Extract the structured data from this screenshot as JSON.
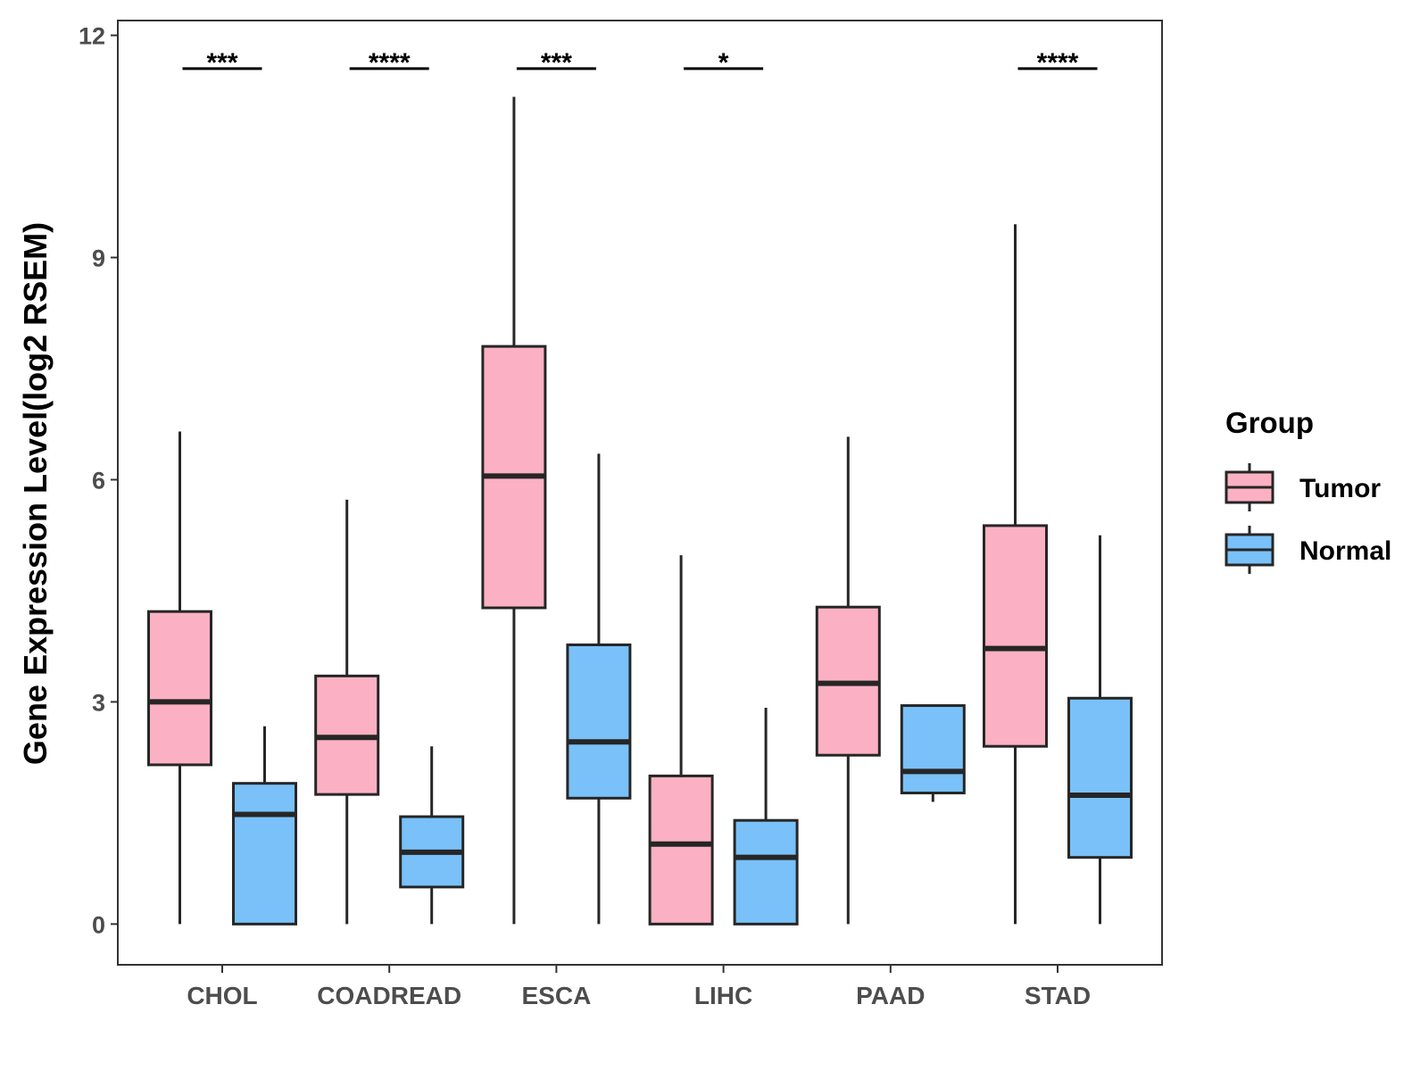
{
  "chart_data": {
    "type": "boxplot",
    "title": "",
    "xlabel": "",
    "ylabel": "Gene Expression Level(log2 RSEM)",
    "ylim": [
      -0.55,
      12.2
    ],
    "yticks": [
      0,
      3,
      6,
      9,
      12
    ],
    "ytick_labels": [
      "0",
      "3",
      "6",
      "9",
      "12"
    ],
    "grid": false,
    "categories": [
      "CHOL",
      "COADREAD",
      "ESCA",
      "LIHC",
      "PAAD",
      "STAD"
    ],
    "series": [
      {
        "name": "Tumor",
        "color": "#FBB1C3",
        "boxes": [
          {
            "whisker_low": 0.0,
            "q1": 2.15,
            "median": 3.0,
            "q3": 4.22,
            "whisker_high": 6.65
          },
          {
            "whisker_low": 0.0,
            "q1": 1.75,
            "median": 2.52,
            "q3": 3.35,
            "whisker_high": 5.73
          },
          {
            "whisker_low": 0.0,
            "q1": 4.27,
            "median": 6.05,
            "q3": 7.8,
            "whisker_high": 11.17
          },
          {
            "whisker_low": 0.0,
            "q1": 0.0,
            "median": 1.08,
            "q3": 2.0,
            "whisker_high": 4.98
          },
          {
            "whisker_low": 0.0,
            "q1": 2.28,
            "median": 3.25,
            "q3": 4.28,
            "whisker_high": 6.58
          },
          {
            "whisker_low": 0.0,
            "q1": 2.4,
            "median": 3.72,
            "q3": 5.38,
            "whisker_high": 9.45
          }
        ]
      },
      {
        "name": "Normal",
        "color": "#79C1F8",
        "boxes": [
          {
            "whisker_low": 0.0,
            "q1": 0.0,
            "median": 1.48,
            "q3": 1.9,
            "whisker_high": 2.67
          },
          {
            "whisker_low": 0.0,
            "q1": 0.5,
            "median": 0.97,
            "q3": 1.45,
            "whisker_high": 2.4
          },
          {
            "whisker_low": 0.0,
            "q1": 1.7,
            "median": 2.46,
            "q3": 3.77,
            "whisker_high": 6.35
          },
          {
            "whisker_low": 0.0,
            "q1": 0.0,
            "median": 0.9,
            "q3": 1.4,
            "whisker_high": 2.92
          },
          {
            "whisker_low": 1.65,
            "q1": 1.77,
            "median": 2.06,
            "q3": 2.95,
            "whisker_high": 2.95
          },
          {
            "whisker_low": 0.0,
            "q1": 0.9,
            "median": 1.74,
            "q3": 3.05,
            "whisker_high": 5.25
          }
        ]
      }
    ],
    "significance": [
      "***",
      "****",
      "***",
      "*",
      "",
      "****"
    ],
    "significance_y": 11.55,
    "legend": {
      "title": "Group",
      "position": "right",
      "entries": [
        "Tumor",
        "Normal"
      ]
    }
  }
}
